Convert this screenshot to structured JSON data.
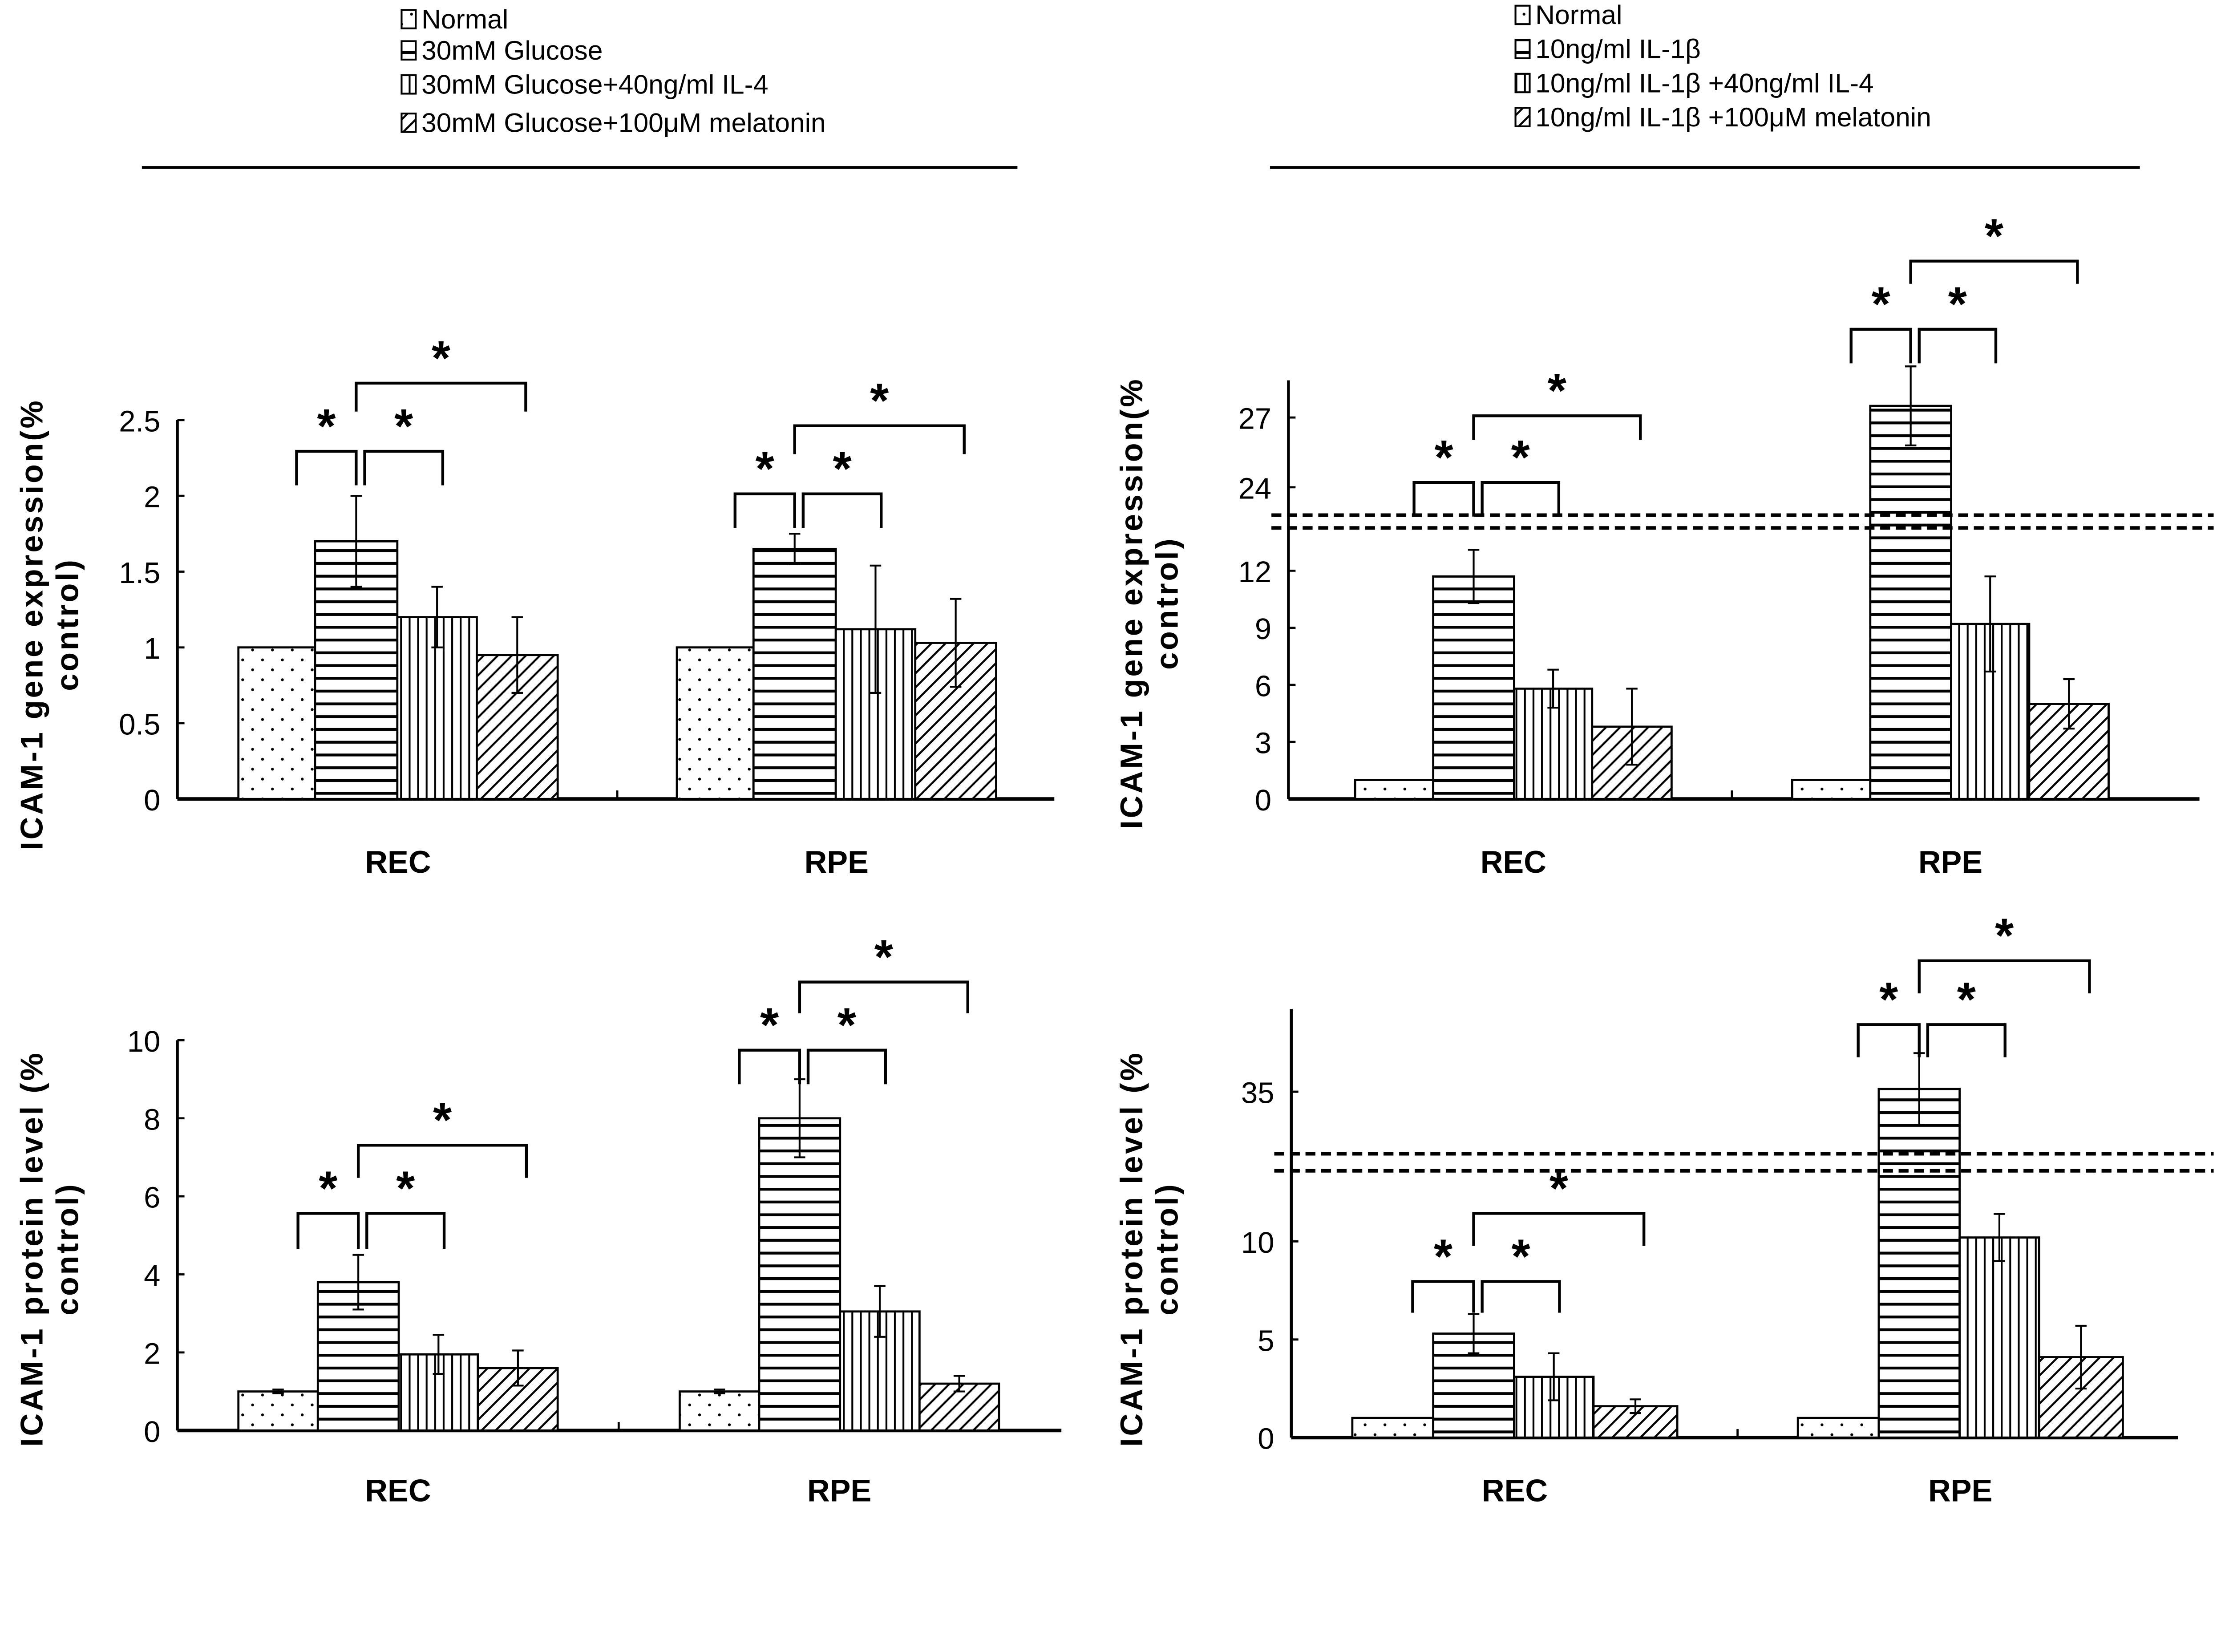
{
  "colors": {
    "ink": "#000000",
    "background": "#ffffff"
  },
  "legends": [
    {
      "items": [
        "Normal",
        "30mM Glucose",
        "30mM Glucose+40ng/ml IL-4",
        "30mM Glucose+100μM melatonin"
      ]
    },
    {
      "items": [
        "Normal",
        "10ng/ml IL-1β",
        "10ng/ml IL-1β +40ng/ml IL-4",
        "10ng/ml IL-1β +100μM melatonin"
      ]
    }
  ],
  "chart_data": [
    {
      "type": "bar",
      "ylabel_line1": "ICAM-1 gene expression(%",
      "ylabel_line2": "control)",
      "categories": [
        "REC",
        "RPE"
      ],
      "ylim": [
        0,
        2.5
      ],
      "ticks": [
        "0",
        "0.5",
        "1",
        "1.5",
        "2",
        "2.5"
      ],
      "tick_values": [
        0,
        0.5,
        1,
        1.5,
        2,
        2.5
      ],
      "patterns": [
        "dots",
        "horizontal",
        "vertical",
        "diagonal"
      ],
      "series": [
        {
          "name": "Normal",
          "values": [
            1,
            1
          ],
          "errors": [
            0,
            0
          ]
        },
        {
          "name": "30mM Glucose",
          "values": [
            1.7,
            1.65
          ],
          "errors": [
            0.3,
            0.1
          ]
        },
        {
          "name": "30mM Glucose+40ng/ml IL-4",
          "values": [
            1.2,
            1.12
          ],
          "errors": [
            0.2,
            0.42
          ]
        },
        {
          "name": "30mM Glucose+100μM melatonin",
          "values": [
            0.95,
            1.03
          ],
          "errors": [
            0.25,
            0.29
          ]
        }
      ],
      "significance": [
        {
          "compare": [
            0,
            1
          ],
          "label": "*"
        },
        {
          "compare": [
            1,
            2
          ],
          "label": "*"
        },
        {
          "compare": [
            1,
            3
          ],
          "label": "*"
        }
      ]
    },
    {
      "type": "bar",
      "ylabel_line1": "ICAM-1 gene expression(%",
      "ylabel_line2": "control)",
      "categories": [
        "REC",
        "RPE"
      ],
      "axis_break": true,
      "ylim_lower": [
        0,
        14.25
      ],
      "ylim_upper": [
        22.8,
        28.6
      ],
      "ticks": [
        "0",
        "3",
        "6",
        "9",
        "12",
        "24",
        "27"
      ],
      "tick_values": [
        0,
        3,
        6,
        9,
        12,
        24,
        27
      ],
      "patterns": [
        "dots",
        "horizontal",
        "vertical",
        "diagonal"
      ],
      "series": [
        {
          "name": "Normal",
          "values": [
            1,
            1
          ],
          "errors": [
            0,
            0
          ]
        },
        {
          "name": "10ng/ml IL-1β",
          "values": [
            11.7,
            27.5
          ],
          "errors": [
            1.4,
            1.7
          ]
        },
        {
          "name": "10ng/ml IL-1β +40ng/ml IL-4",
          "values": [
            5.8,
            9.2
          ],
          "errors": [
            1.0,
            2.5
          ]
        },
        {
          "name": "10ng/ml IL-1β +100μM melatonin",
          "values": [
            3.8,
            5.0
          ],
          "errors": [
            2.0,
            1.3
          ]
        }
      ],
      "significance": [
        {
          "compare": [
            0,
            1
          ],
          "label": "*"
        },
        {
          "compare": [
            1,
            2
          ],
          "label": "*"
        },
        {
          "compare": [
            1,
            3
          ],
          "label": "*"
        }
      ]
    },
    {
      "type": "bar",
      "ylabel_line1": "ICAM-1  protein level (%",
      "ylabel_line2": "control)",
      "categories": [
        "REC",
        "RPE"
      ],
      "ylim": [
        0,
        10
      ],
      "ticks": [
        "0",
        "2",
        "4",
        "6",
        "8",
        "10"
      ],
      "tick_values": [
        0,
        2,
        4,
        6,
        8,
        10
      ],
      "patterns": [
        "dots",
        "horizontal",
        "vertical",
        "diagonal"
      ],
      "series": [
        {
          "name": "Normal",
          "values": [
            1,
            1
          ],
          "errors": [
            0.05,
            0.05
          ]
        },
        {
          "name": "30mM Glucose",
          "values": [
            3.8,
            8.0
          ],
          "errors": [
            0.7,
            1.0
          ]
        },
        {
          "name": "30mM Glucose+40ng/ml IL-4",
          "values": [
            1.95,
            3.05
          ],
          "errors": [
            0.5,
            0.65
          ]
        },
        {
          "name": "30mM Glucose+100μM melatonin",
          "values": [
            1.6,
            1.2
          ],
          "errors": [
            0.45,
            0.2
          ]
        }
      ],
      "significance": [
        {
          "compare": [
            0,
            1
          ],
          "label": "*"
        },
        {
          "compare": [
            1,
            2
          ],
          "label": "*"
        },
        {
          "compare": [
            1,
            3
          ],
          "label": "*"
        }
      ]
    },
    {
      "type": "bar",
      "ylabel_line1": "ICAM-1  protein level (%",
      "ylabel_line2": "control)",
      "categories": [
        "REC",
        "RPE"
      ],
      "axis_break": true,
      "ylim_lower": [
        0,
        13.6
      ],
      "ylim_upper": [
        30.5,
        41
      ],
      "ticks": [
        "0",
        "5",
        "10",
        "35"
      ],
      "tick_values": [
        0,
        5,
        10,
        35
      ],
      "patterns": [
        "dots",
        "horizontal",
        "vertical",
        "diagonal"
      ],
      "series": [
        {
          "name": "Normal",
          "values": [
            1,
            1
          ],
          "errors": [
            0,
            0
          ]
        },
        {
          "name": "10ng/ml IL-1β",
          "values": [
            5.3,
            35.2
          ],
          "errors": [
            1.0,
            2.6
          ]
        },
        {
          "name": "10ng/ml IL-1β +40ng/ml IL-4",
          "values": [
            3.1,
            10.2
          ],
          "errors": [
            1.2,
            1.2
          ]
        },
        {
          "name": "10ng/ml IL-1β +100μM melatonin",
          "values": [
            1.6,
            4.1
          ],
          "errors": [
            0.35,
            1.6
          ]
        }
      ],
      "significance": [
        {
          "compare": [
            0,
            1
          ],
          "label": "*"
        },
        {
          "compare": [
            1,
            2
          ],
          "label": "*"
        },
        {
          "compare": [
            1,
            3
          ],
          "label": "*"
        }
      ]
    }
  ]
}
